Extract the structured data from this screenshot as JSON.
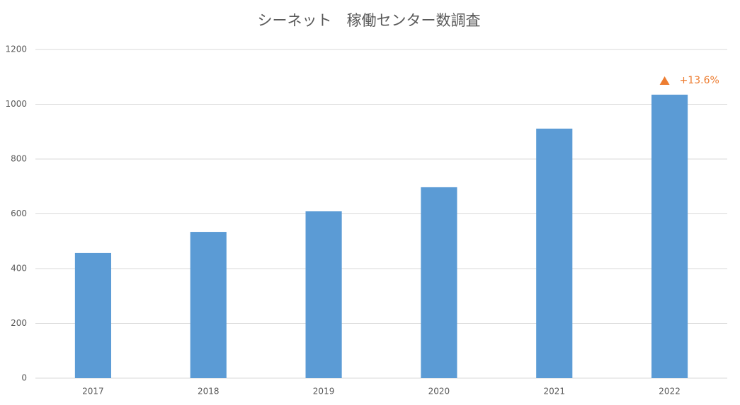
{
  "chart_data": {
    "type": "bar",
    "title": "シーネット　稼働センター数調査",
    "categories": [
      "2017",
      "2018",
      "2019",
      "2020",
      "2021",
      "2022"
    ],
    "values": [
      457,
      534,
      609,
      697,
      911,
      1035
    ],
    "color": "#5b9bd5",
    "ylim": [
      0,
      1200
    ],
    "yticks": [
      0,
      200,
      400,
      600,
      800,
      1000,
      1200
    ],
    "grid": true,
    "annotation": "+13.6%",
    "annotation_color": "#ed7d31"
  }
}
